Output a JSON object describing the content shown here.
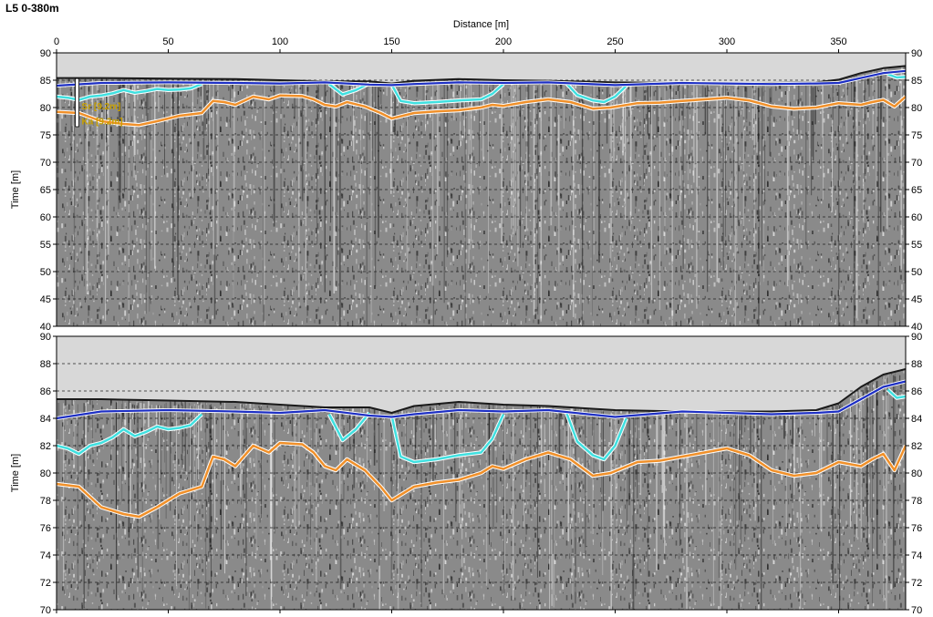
{
  "page_title": "L5 0-380m",
  "colors": {
    "sky": "#d8d8d8",
    "surface": "#1a1a1a",
    "blue_horizon": "#1d2fc4",
    "cyan_horizon": "#3fe0e0",
    "orange_horizon": "#f0902a",
    "gridline": "#222222",
    "well_label": "#c8a000"
  },
  "well_labels": [
    "Sr [9.2m]",
    "Ka [9.2m]"
  ],
  "chart_data": [
    {
      "type": "line",
      "title": "",
      "xlabel": "Distance [m]",
      "ylabel": "Time [m]",
      "xlim": [
        0,
        380
      ],
      "ylim": [
        40,
        90
      ],
      "xticks": [
        0,
        50,
        100,
        150,
        200,
        250,
        300,
        350
      ],
      "yticks": [
        40,
        45,
        50,
        55,
        60,
        65,
        70,
        75,
        80,
        85,
        90
      ],
      "grid": true,
      "series": [
        {
          "key": "surface",
          "x": [
            0,
            20,
            50,
            80,
            100,
            120,
            140,
            150,
            160,
            180,
            200,
            220,
            250,
            280,
            300,
            320,
            340,
            350,
            360,
            370,
            380
          ],
          "y": [
            85.4,
            85.4,
            85.3,
            85.2,
            85.0,
            84.8,
            84.8,
            84.4,
            84.9,
            85.2,
            85.0,
            84.9,
            84.6,
            84.5,
            84.5,
            84.5,
            84.6,
            85.1,
            86.3,
            87.2,
            87.6
          ]
        },
        {
          "key": "blue",
          "x": [
            0,
            20,
            50,
            80,
            100,
            120,
            140,
            150,
            160,
            180,
            200,
            220,
            250,
            280,
            300,
            320,
            340,
            350,
            360,
            370,
            380
          ],
          "y": [
            84.0,
            84.5,
            84.6,
            84.5,
            84.4,
            84.6,
            84.2,
            84.1,
            84.3,
            84.6,
            84.5,
            84.6,
            84.1,
            84.5,
            84.4,
            84.3,
            84.4,
            84.5,
            85.4,
            86.3,
            86.7
          ]
        },
        {
          "key": "cyan1",
          "x": [
            0,
            5,
            10,
            15,
            20,
            25,
            30,
            35,
            40,
            45,
            50,
            55,
            60,
            65
          ],
          "y": [
            82.0,
            81.8,
            81.4,
            82.0,
            82.2,
            82.6,
            83.2,
            82.7,
            83.0,
            83.4,
            83.2,
            83.3,
            83.5,
            84.3
          ]
        },
        {
          "key": "cyan2",
          "x": [
            122,
            128,
            134,
            140
          ],
          "y": [
            84.3,
            82.4,
            83.2,
            84.4
          ]
        },
        {
          "key": "cyan3",
          "x": [
            150,
            154,
            160,
            170,
            180,
            190,
            195,
            200
          ],
          "y": [
            84.2,
            81.2,
            80.8,
            81.0,
            81.3,
            81.5,
            82.5,
            84.3
          ]
        },
        {
          "key": "cyan4",
          "x": [
            228,
            233,
            240,
            245,
            250,
            255
          ],
          "y": [
            84.5,
            82.3,
            81.3,
            81.0,
            82.0,
            84.0
          ]
        },
        {
          "key": "cyan5",
          "x": [
            372,
            376,
            380
          ],
          "y": [
            86.1,
            85.5,
            85.6
          ]
        },
        {
          "key": "orange",
          "x": [
            0,
            10,
            20,
            30,
            37,
            45,
            50,
            55,
            65,
            70,
            75,
            80,
            88,
            95,
            100,
            110,
            115,
            120,
            125,
            130,
            138,
            145,
            150,
            160,
            170,
            180,
            190,
            195,
            200,
            210,
            220,
            230,
            240,
            248,
            260,
            270,
            280,
            290,
            300,
            310,
            320,
            330,
            340,
            350,
            360,
            365,
            370,
            375,
            380
          ],
          "y": [
            79.2,
            79.0,
            77.5,
            77.0,
            76.8,
            77.5,
            78.0,
            78.5,
            79.0,
            81.2,
            81.0,
            80.5,
            82.0,
            81.5,
            82.2,
            82.1,
            81.5,
            80.5,
            80.2,
            81.0,
            80.2,
            79.0,
            78.0,
            79.0,
            79.3,
            79.5,
            80.0,
            80.5,
            80.3,
            81.0,
            81.5,
            81.0,
            79.8,
            80.0,
            80.8,
            80.9,
            81.2,
            81.5,
            81.8,
            81.3,
            80.2,
            79.8,
            80.0,
            80.8,
            80.5,
            81.0,
            81.4,
            80.2,
            82.0
          ]
        }
      ]
    },
    {
      "type": "line",
      "title": "",
      "xlabel": "",
      "ylabel": "Time [m]",
      "xlim": [
        0,
        380
      ],
      "ylim": [
        70,
        90
      ],
      "xticks": [
        0,
        50,
        100,
        150,
        200,
        250,
        300,
        350
      ],
      "yticks": [
        70,
        72,
        74,
        76,
        78,
        80,
        82,
        84,
        86,
        88,
        90
      ],
      "grid": true,
      "series": "same as panel 1 (zoomed view)"
    }
  ]
}
